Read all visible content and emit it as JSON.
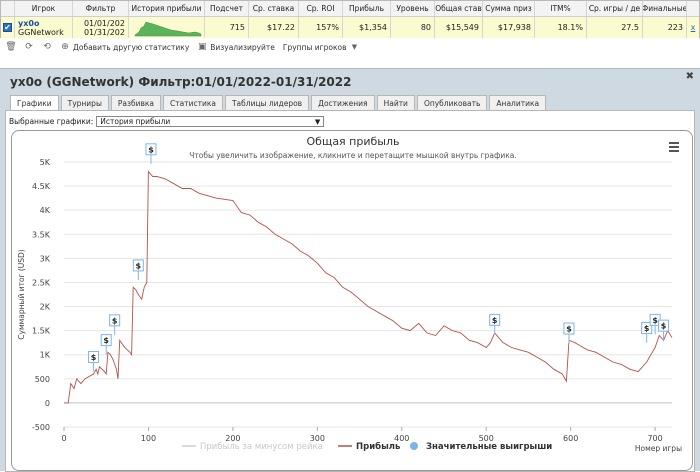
{
  "top_table": {
    "headers": [
      "Игрок",
      "Фильтр",
      "История прибыли",
      "Подсчет",
      "Ср. ставка",
      "Ср. ROI",
      "Прибыль",
      "Уровень",
      "Общая став",
      "Сумма приз",
      "ITM%",
      "Ср. игры / де",
      "Финальные"
    ],
    "row": {
      "player": "yx0o",
      "network": "GGNetwork",
      "filter_from": "01/01/202",
      "filter_to": "01/31/202",
      "count": "715",
      "avg_stake": "$17.22",
      "avg_roi": "157%",
      "profit": "$1,354",
      "level": "80",
      "total_stake": "$15,549",
      "prize_sum": "$17,938",
      "itm": "18.1%",
      "avg_games_day": "27.5",
      "finals": "223",
      "remove": "x"
    }
  },
  "toolbar": {
    "add_stat": "Добавить другую статистику",
    "visualize": "Визуализируйте",
    "player_groups": "Группы игроков"
  },
  "panel": {
    "title": "yx0o (GGNetwork) Фильтр:01/01/2022-01/31/2022",
    "close": "✖",
    "tabs": [
      "Графики",
      "Турниры",
      "Разбивка",
      "Статистика",
      "Таблицы лидеров",
      "Достижения",
      "Найти",
      "Опубликовать",
      "Аналитика"
    ],
    "active_tab": 0,
    "selected_label": "Выбранные графики:",
    "selected_value": "История прибыли"
  },
  "chart_data": {
    "type": "line",
    "title": "Общая прибыль",
    "subtitle": "Чтобы увеличить изображение, кликните и перетащите мышкой внутрь графика.",
    "xlabel": "Номер игры",
    "ylabel": "Суммарный итог (USD)",
    "xlim": [
      0,
      720
    ],
    "ylim": [
      -500,
      5000
    ],
    "x_ticks": [
      0,
      100,
      200,
      300,
      400,
      500,
      600,
      700
    ],
    "y_ticks": [
      -500,
      0,
      500,
      1000,
      1500,
      2000,
      2500,
      3000,
      3500,
      4000,
      4500,
      5000
    ],
    "y_tick_labels": [
      "-500",
      "0",
      "500",
      "1K",
      "1.5K",
      "2K",
      "2.5K",
      "3K",
      "3.5K",
      "4K",
      "4.5K",
      "5K"
    ],
    "legend": [
      {
        "name": "Прибыль за минусом рейка",
        "color": "#cccccc",
        "visible": false
      },
      {
        "name": "Прибыль",
        "color": "#b5524a",
        "visible": true
      },
      {
        "name": "Значительные выигрыши",
        "color": "#7cb5ec",
        "visible": true
      }
    ],
    "series": [
      {
        "name": "Прибыль",
        "points": [
          [
            0,
            0
          ],
          [
            5,
            0
          ],
          [
            8,
            400
          ],
          [
            12,
            300
          ],
          [
            15,
            500
          ],
          [
            20,
            400
          ],
          [
            25,
            500
          ],
          [
            30,
            550
          ],
          [
            35,
            600
          ],
          [
            38,
            700
          ],
          [
            40,
            600
          ],
          [
            42,
            750
          ],
          [
            45,
            700
          ],
          [
            48,
            650
          ],
          [
            50,
            600
          ],
          [
            52,
            1050
          ],
          [
            55,
            1000
          ],
          [
            58,
            900
          ],
          [
            60,
            800
          ],
          [
            62,
            700
          ],
          [
            64,
            500
          ],
          [
            66,
            1300
          ],
          [
            68,
            1250
          ],
          [
            70,
            1200
          ],
          [
            72,
            1150
          ],
          [
            75,
            1100
          ],
          [
            78,
            1050
          ],
          [
            80,
            1000
          ],
          [
            82,
            2400
          ],
          [
            85,
            2350
          ],
          [
            88,
            2250
          ],
          [
            90,
            2200
          ],
          [
            92,
            2150
          ],
          [
            95,
            2400
          ],
          [
            98,
            2500
          ],
          [
            100,
            4800
          ],
          [
            105,
            4700
          ],
          [
            110,
            4700
          ],
          [
            120,
            4650
          ],
          [
            130,
            4550
          ],
          [
            140,
            4450
          ],
          [
            150,
            4450
          ],
          [
            160,
            4350
          ],
          [
            170,
            4300
          ],
          [
            180,
            4250
          ],
          [
            200,
            4200
          ],
          [
            210,
            3950
          ],
          [
            220,
            3900
          ],
          [
            230,
            3750
          ],
          [
            240,
            3650
          ],
          [
            250,
            3500
          ],
          [
            260,
            3400
          ],
          [
            270,
            3300
          ],
          [
            280,
            3150
          ],
          [
            290,
            3050
          ],
          [
            300,
            2900
          ],
          [
            310,
            2700
          ],
          [
            320,
            2600
          ],
          [
            330,
            2400
          ],
          [
            340,
            2300
          ],
          [
            350,
            2150
          ],
          [
            360,
            2000
          ],
          [
            370,
            1900
          ],
          [
            380,
            1800
          ],
          [
            390,
            1700
          ],
          [
            400,
            1550
          ],
          [
            410,
            1500
          ],
          [
            420,
            1650
          ],
          [
            430,
            1450
          ],
          [
            440,
            1400
          ],
          [
            450,
            1600
          ],
          [
            460,
            1500
          ],
          [
            470,
            1450
          ],
          [
            480,
            1300
          ],
          [
            490,
            1250
          ],
          [
            500,
            1150
          ],
          [
            505,
            1250
          ],
          [
            510,
            1450
          ],
          [
            515,
            1350
          ],
          [
            520,
            1250
          ],
          [
            530,
            1150
          ],
          [
            540,
            1100
          ],
          [
            550,
            1050
          ],
          [
            560,
            950
          ],
          [
            570,
            850
          ],
          [
            580,
            700
          ],
          [
            590,
            600
          ],
          [
            595,
            450
          ],
          [
            598,
            1300
          ],
          [
            605,
            1250
          ],
          [
            610,
            1200
          ],
          [
            620,
            1100
          ],
          [
            630,
            1050
          ],
          [
            640,
            950
          ],
          [
            650,
            850
          ],
          [
            660,
            800
          ],
          [
            670,
            700
          ],
          [
            680,
            650
          ],
          [
            690,
            850
          ],
          [
            695,
            1000
          ],
          [
            700,
            1150
          ],
          [
            705,
            1400
          ],
          [
            710,
            1300
          ],
          [
            715,
            1500
          ],
          [
            720,
            1354
          ]
        ]
      }
    ],
    "big_wins": [
      [
        35,
        860
      ],
      [
        50,
        1210
      ],
      [
        60,
        1620
      ],
      [
        88,
        2760
      ],
      [
        103,
        5170
      ],
      [
        510,
        1630
      ],
      [
        598,
        1450
      ],
      [
        690,
        1460
      ],
      [
        700,
        1630
      ],
      [
        710,
        1510
      ]
    ],
    "big_win_symbol": "$",
    "menu_icon": "hamburger-menu-icon"
  }
}
